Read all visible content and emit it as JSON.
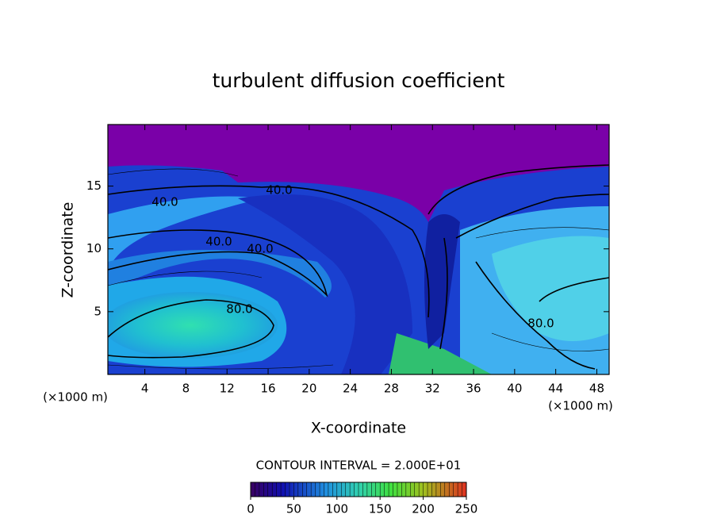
{
  "chart_data": {
    "type": "contour",
    "title": "turbulent diffusion coefficient",
    "x_label": "X-coordinate",
    "y_label": "Z-coordinate",
    "x_unit_left": "(×1000 m)",
    "x_unit_right": "(×1000 m)",
    "xlim": [
      0.4,
      49.2
    ],
    "xticks": [
      4,
      8,
      12,
      16,
      20,
      24,
      28,
      32,
      36,
      40,
      44,
      48
    ],
    "ylim": [
      0,
      19.9
    ],
    "yticks": [
      5,
      10,
      15
    ],
    "contour_interval": "CONTOUR INTERVAL = 2.000E+01",
    "contour_labels": [
      {
        "value": 40,
        "label": "40.0"
      },
      {
        "value": 40,
        "label": "40.0"
      },
      {
        "value": 40,
        "label": "40.0"
      },
      {
        "value": 40,
        "label": "40.0"
      },
      {
        "value": 80,
        "label": "80.0"
      },
      {
        "value": 80,
        "label": "80.0"
      }
    ],
    "colorbar": {
      "lim": [
        0,
        250
      ],
      "ticks": [
        0,
        50,
        100,
        150,
        200,
        250
      ]
    }
  }
}
